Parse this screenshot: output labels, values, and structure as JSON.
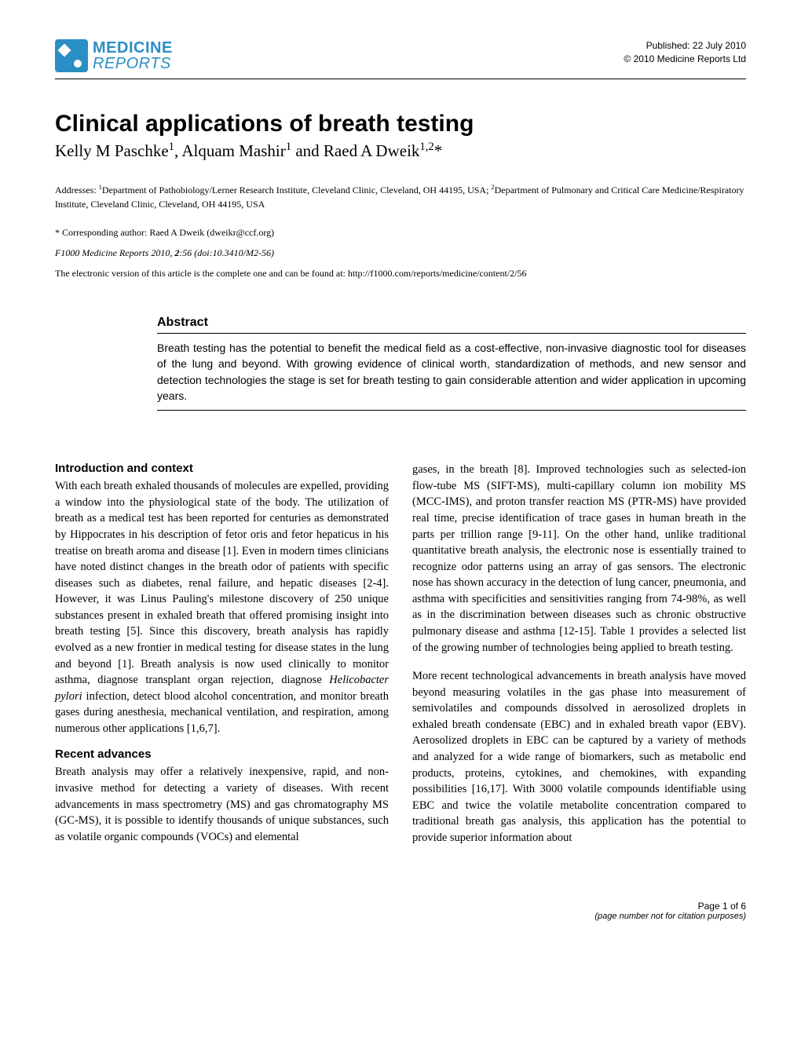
{
  "header": {
    "logo_line1": "MEDICINE",
    "logo_line2": "REPORTS",
    "published": "Published: 22 July 2010",
    "copyright": "© 2010 Medicine Reports Ltd"
  },
  "title": "Clinical applications of breath testing",
  "authors_html": "Kelly M Paschke<sup>1</sup>, Alquam Mashir<sup>1</sup> and Raed A Dweik<sup>1,2</sup>*",
  "addresses_html": "Addresses: <sup>1</sup>Department of Pathobiology/Lerner Research Institute, Cleveland Clinic, Cleveland, OH 44195, USA; <sup>2</sup>Department of Pulmonary and Critical Care Medicine/Respiratory Institute, Cleveland Clinic, Cleveland, OH 44195, USA",
  "corresponding": "* Corresponding author: Raed A Dweik (dweikr@ccf.org)",
  "citation_html": "<span style='font-style:italic'>F1000 Medicine Reports</span> 2010, <b>2</b>:56 (doi:10.3410/M2-56)",
  "electronic": "The electronic version of this article is the complete one and can be found at: http://f1000.com/reports/medicine/content/2/56",
  "abstract": {
    "heading": "Abstract",
    "text": "Breath testing has the potential to benefit the medical field as a cost-effective, non-invasive diagnostic tool for diseases of the lung and beyond. With growing evidence of clinical worth, standardization of methods, and new sensor and detection technologies the stage is set for breath testing to gain considerable attention and wider application in upcoming years."
  },
  "body": {
    "left": {
      "heading1": "Introduction and context",
      "para1": "With each breath exhaled thousands of molecules are expelled, providing a window into the physiological state of the body. The utilization of breath as a medical test has been reported for centuries as demonstrated by Hippocrates in his description of fetor oris and fetor hepaticus in his treatise on breath aroma and disease [1]. Even in modern times clinicians have noted distinct changes in the breath odor of patients with specific diseases such as diabetes, renal failure, and hepatic diseases [2-4]. However, it was Linus Pauling's milestone discovery of 250 unique substances present in exhaled breath that offered promising insight into breath testing [5]. Since this discovery, breath analysis has rapidly evolved as a new frontier in medical testing for disease states in the lung and beyond [1]. Breath analysis is now used clinically to monitor asthma, diagnose transplant organ rejection, diagnose <span class='italic'>Helicobacter pylori</span> infection, detect blood alcohol concentration, and monitor breath gases during anesthesia, mechanical ventilation, and respiration, among numerous other applications [1,6,7].",
      "heading2": "Recent advances",
      "para2": "Breath analysis may offer a relatively inexpensive, rapid, and non-invasive method for detecting a variety of diseases. With recent advancements in mass spectrometry (MS) and gas chromatography MS (GC-MS), it is possible to identify thousands of unique substances, such as volatile organic compounds (VOCs) and elemental"
    },
    "right": {
      "para1": "gases, in the breath [8]. Improved technologies such as selected-ion flow-tube MS (SIFT-MS), multi-capillary column ion mobility MS (MCC-IMS), and proton transfer reaction MS (PTR-MS) have provided real time, precise identification of trace gases in human breath in the parts per trillion range [9-11]. On the other hand, unlike traditional quantitative breath analysis, the electronic nose is essentially trained to recognize odor patterns using an array of gas sensors. The electronic nose has shown accuracy in the detection of lung cancer, pneumonia, and asthma with specificities and sensitivities ranging from 74-98%, as well as in the discrimination between diseases such as chronic obstructive pulmonary disease and asthma [12-15]. Table 1 provides a selected list of the growing number of technologies being applied to breath testing.",
      "para2": "More recent technological advancements in breath analysis have moved beyond measuring volatiles in the gas phase into measurement of semivolatiles and compounds dissolved in aerosolized droplets in exhaled breath condensate (EBC) and in exhaled breath vapor (EBV). Aerosolized droplets in EBC can be captured by a variety of methods and analyzed for a wide range of biomarkers, such as metabolic end products, proteins, cytokines, and chemokines, with expanding possibilities [16,17]. With 3000 volatile compounds identifiable using EBC and twice the volatile metabolite concentration compared to traditional breath gas analysis, this application has the potential to provide superior information about"
    }
  },
  "footer": {
    "page": "Page 1 of 6",
    "note": "(page number not for citation purposes)"
  },
  "colors": {
    "brand_blue": "#2a8fc4",
    "text": "#000000",
    "background": "#ffffff"
  },
  "typography": {
    "title_fontsize": 30,
    "authors_fontsize": 21,
    "body_fontsize": 14.5,
    "meta_fontsize": 12,
    "abstract_fontsize": 14
  }
}
